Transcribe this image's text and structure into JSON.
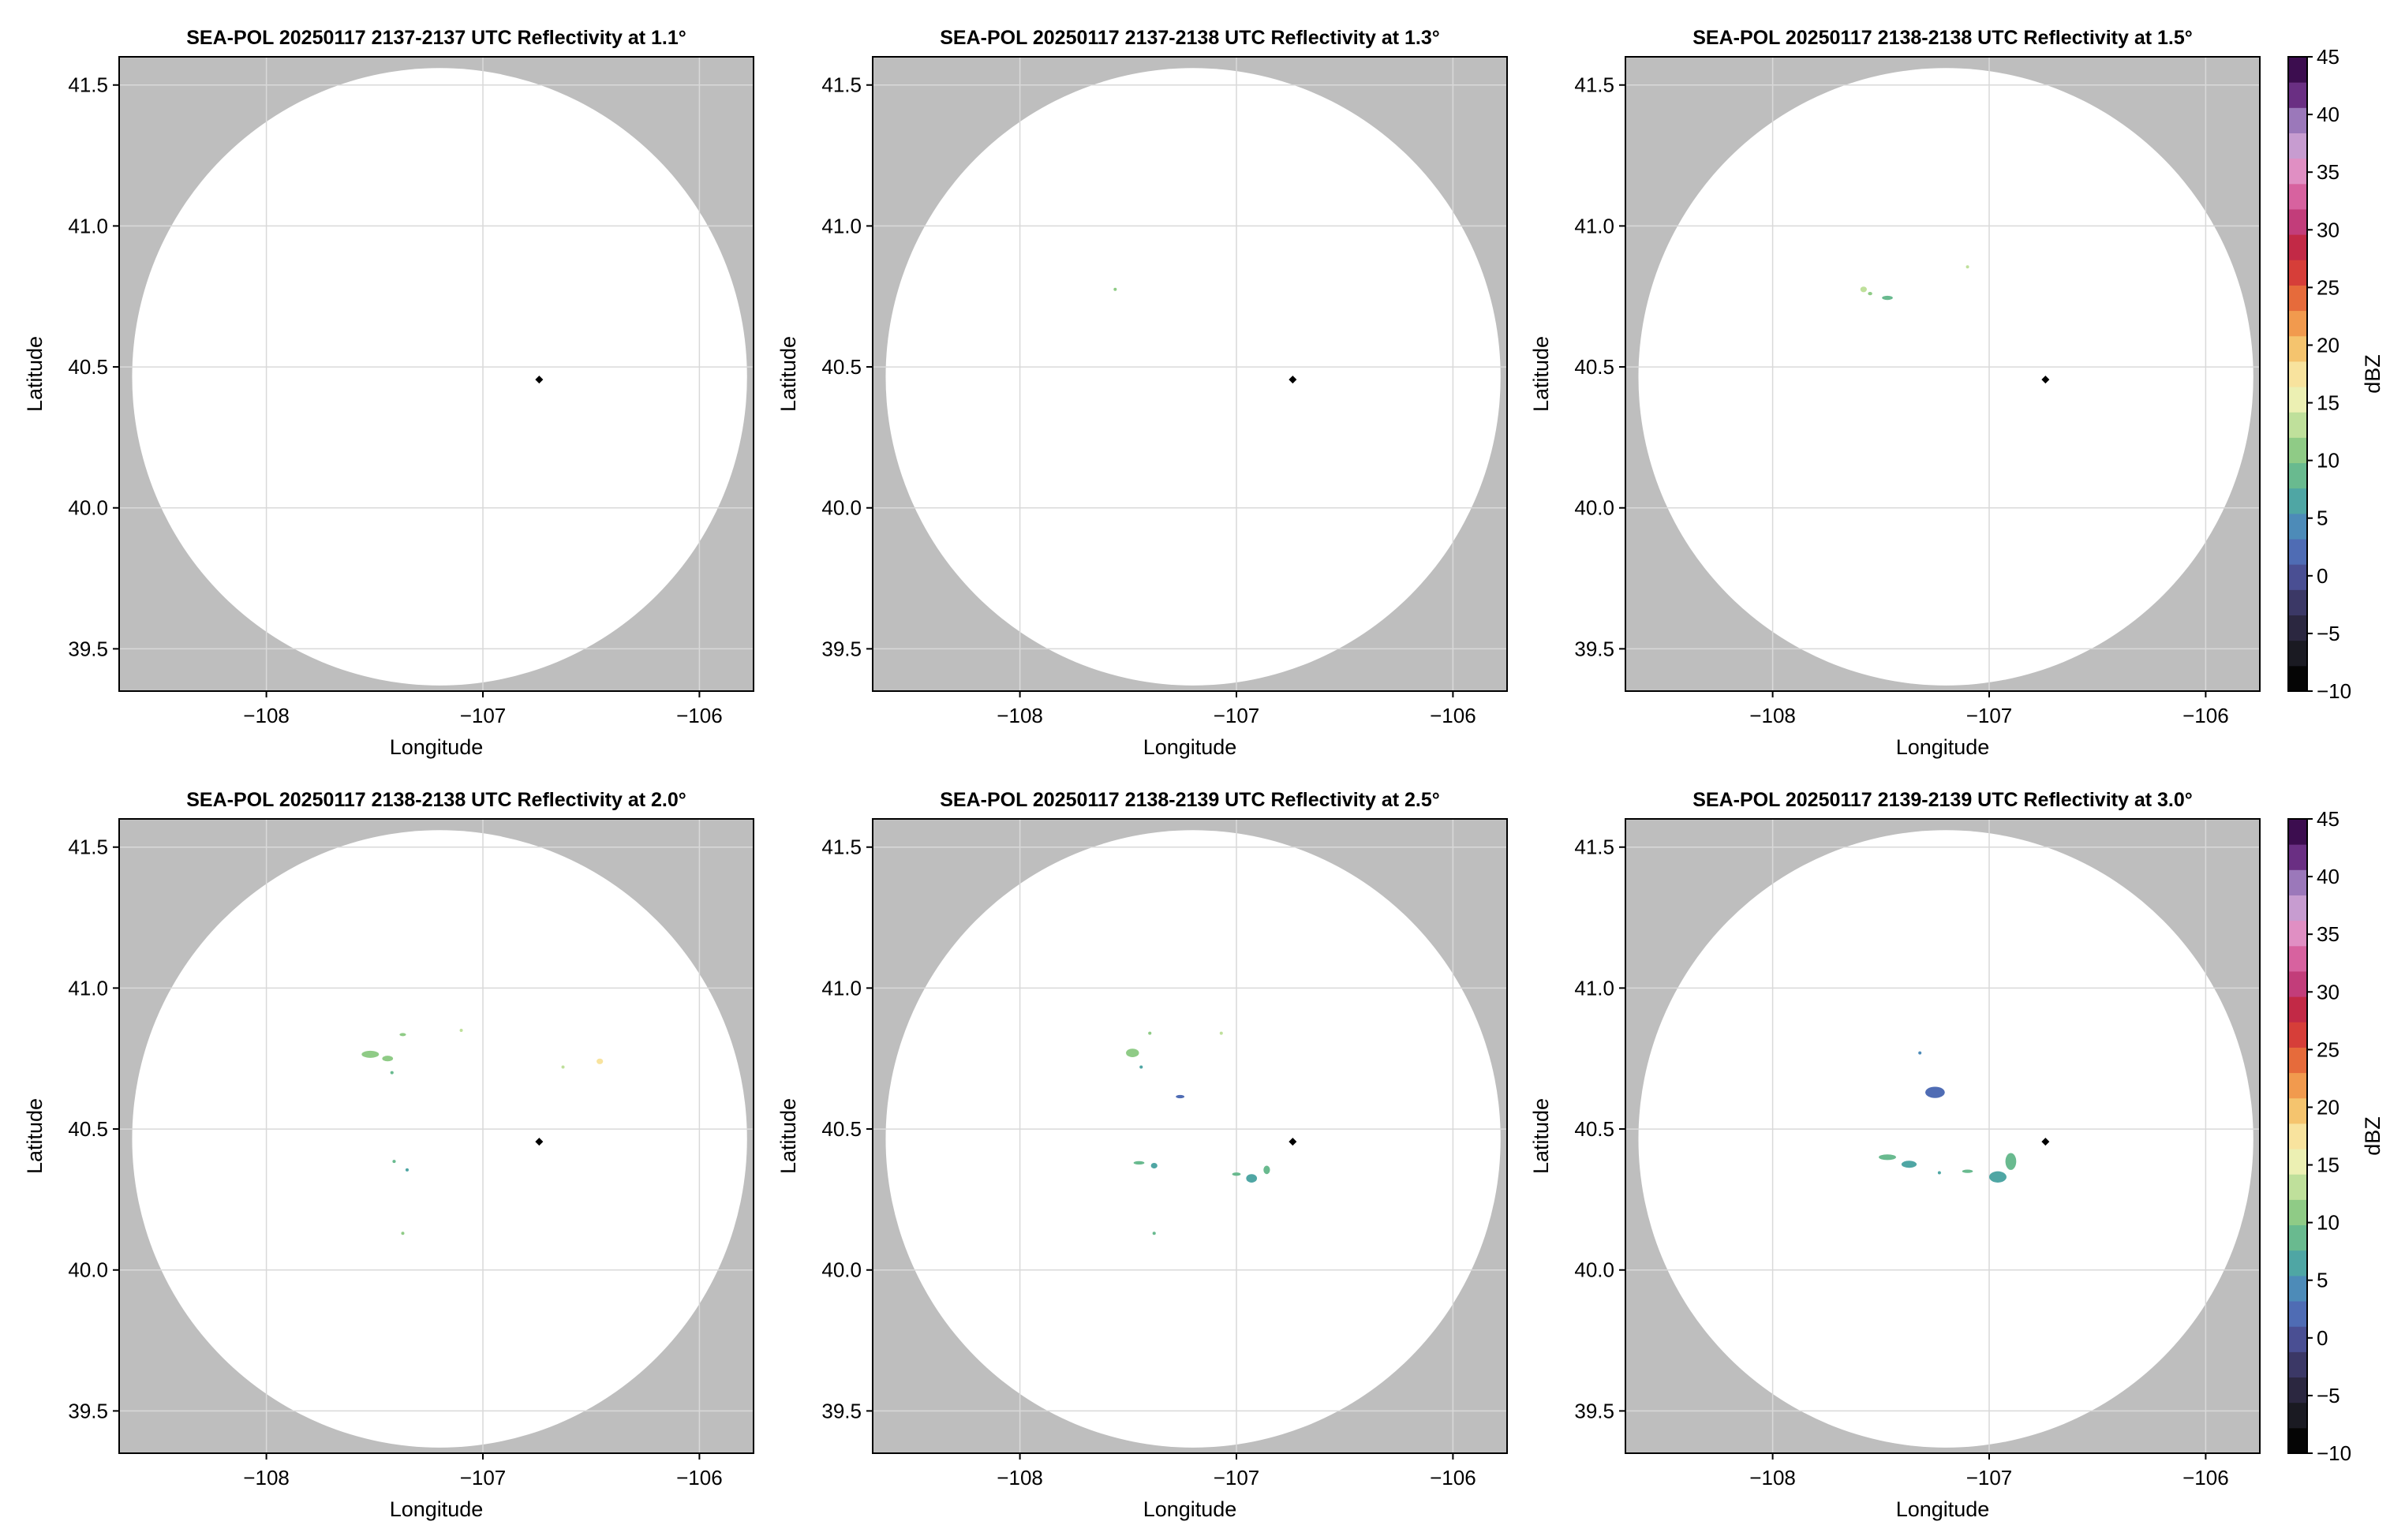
{
  "colors": {
    "outside_range": "#bebebe",
    "inside_range": "#ffffff",
    "radar_marker": "#000000",
    "grid": "#d9d9d9"
  },
  "colorbar": {
    "label": "dBZ",
    "min": -10,
    "max": 45,
    "step": 5,
    "ticks": [
      "−10",
      "−5",
      "0",
      "5",
      "10",
      "15",
      "20",
      "25",
      "30",
      "35",
      "40",
      "45"
    ],
    "palette": [
      "#050505",
      "#1a1a22",
      "#2b2740",
      "#3b3866",
      "#4a4f93",
      "#4f6cb4",
      "#4d8bb8",
      "#4fa6a4",
      "#69ba8f",
      "#8fcb86",
      "#bfe09b",
      "#ecf0b3",
      "#f8e39e",
      "#f5c46e",
      "#f19a4e",
      "#e66b3b",
      "#d63e39",
      "#c22946",
      "#c23d7a",
      "#d7629f",
      "#e08fc3",
      "#c79cd0",
      "#9b78ba",
      "#6a2f83",
      "#3c0d4f"
    ]
  },
  "chart_data": [
    {
      "type": "heatmap",
      "title": "SEA-POL 20250117 2137-2137 UTC Reflectivity at 1.1°",
      "xlabel": "Longitude",
      "ylabel": "Latitude",
      "xlim": [
        -108.68,
        -105.75
      ],
      "ylim": [
        39.35,
        41.6
      ],
      "xticks": [
        -108,
        -107,
        -106
      ],
      "xtick_labels": [
        "−108",
        "−107",
        "−106"
      ],
      "yticks": [
        39.5,
        40.0,
        40.5,
        41.0,
        41.5
      ],
      "ytick_labels": [
        "39.5",
        "40.0",
        "40.5",
        "41.0",
        "41.5"
      ],
      "grid": true,
      "radar_site": {
        "lon": -106.74,
        "lat": 40.455
      },
      "range_circle": {
        "center_lon": -107.2,
        "center_lat": 40.465,
        "radius_lon": 1.42,
        "radius_lat": 1.095
      },
      "echoes": []
    },
    {
      "type": "heatmap",
      "title": "SEA-POL 20250117 2137-2138 UTC Reflectivity at 1.3°",
      "xlabel": "Longitude",
      "ylabel": "Latitude",
      "xlim": [
        -108.68,
        -105.75
      ],
      "ylim": [
        39.35,
        41.6
      ],
      "xticks": [
        -108,
        -107,
        -106
      ],
      "xtick_labels": [
        "−108",
        "−107",
        "−106"
      ],
      "yticks": [
        39.5,
        40.0,
        40.5,
        41.0,
        41.5
      ],
      "ytick_labels": [
        "39.5",
        "40.0",
        "40.5",
        "41.0",
        "41.5"
      ],
      "grid": true,
      "radar_site": {
        "lon": -106.74,
        "lat": 40.455
      },
      "range_circle": {
        "center_lon": -107.2,
        "center_lat": 40.465,
        "radius_lon": 1.42,
        "radius_lat": 1.095
      },
      "echoes": [
        {
          "lon": -107.56,
          "lat": 40.775,
          "dlon": 0.01,
          "dlat": 0.008,
          "dbz": 10
        }
      ]
    },
    {
      "type": "heatmap",
      "title": "SEA-POL 20250117 2138-2138 UTC Reflectivity at 1.5°",
      "xlabel": "Longitude",
      "ylabel": "Latitude",
      "xlim": [
        -108.68,
        -105.75
      ],
      "ylim": [
        39.35,
        41.6
      ],
      "xticks": [
        -108,
        -107,
        -106
      ],
      "xtick_labels": [
        "−108",
        "−107",
        "−106"
      ],
      "yticks": [
        39.5,
        40.0,
        40.5,
        41.0,
        41.5
      ],
      "ytick_labels": [
        "39.5",
        "40.0",
        "40.5",
        "41.0",
        "41.5"
      ],
      "grid": true,
      "radar_site": {
        "lon": -106.74,
        "lat": 40.455
      },
      "range_circle": {
        "center_lon": -107.2,
        "center_lat": 40.465,
        "radius_lon": 1.42,
        "radius_lat": 1.095
      },
      "echoes": [
        {
          "lon": -107.58,
          "lat": 40.775,
          "dlon": 0.03,
          "dlat": 0.02,
          "dbz": 12
        },
        {
          "lon": -107.55,
          "lat": 40.76,
          "dlon": 0.02,
          "dlat": 0.012,
          "dbz": 10
        },
        {
          "lon": -107.47,
          "lat": 40.745,
          "dlon": 0.05,
          "dlat": 0.015,
          "dbz": 9
        },
        {
          "lon": -107.1,
          "lat": 40.855,
          "dlon": 0.01,
          "dlat": 0.008,
          "dbz": 14
        }
      ]
    },
    {
      "type": "heatmap",
      "title": "SEA-POL 20250117 2138-2138 UTC Reflectivity at 2.0°",
      "xlabel": "Longitude",
      "ylabel": "Latitude",
      "xlim": [
        -108.68,
        -105.75
      ],
      "ylim": [
        39.35,
        41.6
      ],
      "xticks": [
        -108,
        -107,
        -106
      ],
      "xtick_labels": [
        "−108",
        "−107",
        "−106"
      ],
      "yticks": [
        39.5,
        40.0,
        40.5,
        41.0,
        41.5
      ],
      "ytick_labels": [
        "39.5",
        "40.0",
        "40.5",
        "41.0",
        "41.5"
      ],
      "grid": true,
      "radar_site": {
        "lon": -106.74,
        "lat": 40.455
      },
      "range_circle": {
        "center_lon": -107.2,
        "center_lat": 40.465,
        "radius_lon": 1.42,
        "radius_lat": 1.095
      },
      "echoes": [
        {
          "lon": -107.52,
          "lat": 40.765,
          "dlon": 0.08,
          "dlat": 0.025,
          "dbz": 11
        },
        {
          "lon": -107.44,
          "lat": 40.75,
          "dlon": 0.05,
          "dlat": 0.02,
          "dbz": 10
        },
        {
          "lon": -107.37,
          "lat": 40.835,
          "dlon": 0.03,
          "dlat": 0.008,
          "dbz": 10
        },
        {
          "lon": -107.1,
          "lat": 40.85,
          "dlon": 0.01,
          "dlat": 0.008,
          "dbz": 12
        },
        {
          "lon": -106.46,
          "lat": 40.74,
          "dlon": 0.03,
          "dlat": 0.02,
          "dbz": 17
        },
        {
          "lon": -106.63,
          "lat": 40.72,
          "dlon": 0.01,
          "dlat": 0.006,
          "dbz": 14
        },
        {
          "lon": -107.42,
          "lat": 40.7,
          "dlon": 0.015,
          "dlat": 0.01,
          "dbz": 8
        },
        {
          "lon": -107.41,
          "lat": 40.385,
          "dlon": 0.015,
          "dlat": 0.008,
          "dbz": 9
        },
        {
          "lon": -107.35,
          "lat": 40.355,
          "dlon": 0.015,
          "dlat": 0.008,
          "dbz": 6
        },
        {
          "lon": -107.37,
          "lat": 40.13,
          "dlon": 0.01,
          "dlat": 0.008,
          "dbz": 11
        }
      ]
    },
    {
      "type": "heatmap",
      "title": "SEA-POL 20250117 2138-2139 UTC Reflectivity at 2.5°",
      "xlabel": "Longitude",
      "ylabel": "Latitude",
      "xlim": [
        -108.68,
        -105.75
      ],
      "ylim": [
        39.35,
        41.6
      ],
      "xticks": [
        -108,
        -107,
        -106
      ],
      "xtick_labels": [
        "−108",
        "−107",
        "−106"
      ],
      "yticks": [
        39.5,
        40.0,
        40.5,
        41.0,
        41.5
      ],
      "ytick_labels": [
        "39.5",
        "40.0",
        "40.5",
        "41.0",
        "41.5"
      ],
      "grid": true,
      "radar_site": {
        "lon": -106.74,
        "lat": 40.455
      },
      "range_circle": {
        "center_lon": -107.2,
        "center_lat": 40.465,
        "radius_lon": 1.42,
        "radius_lat": 1.095
      },
      "echoes": [
        {
          "lon": -107.48,
          "lat": 40.77,
          "dlon": 0.06,
          "dlat": 0.03,
          "dbz": 10
        },
        {
          "lon": -107.4,
          "lat": 40.84,
          "dlon": 0.015,
          "dlat": 0.008,
          "dbz": 10
        },
        {
          "lon": -107.07,
          "lat": 40.84,
          "dlon": 0.01,
          "dlat": 0.006,
          "dbz": 12
        },
        {
          "lon": -107.26,
          "lat": 40.615,
          "dlon": 0.04,
          "dlat": 0.012,
          "dbz": 2
        },
        {
          "lon": -107.44,
          "lat": 40.72,
          "dlon": 0.015,
          "dlat": 0.01,
          "dbz": 7
        },
        {
          "lon": -107.45,
          "lat": 40.38,
          "dlon": 0.05,
          "dlat": 0.012,
          "dbz": 8
        },
        {
          "lon": -107.38,
          "lat": 40.37,
          "dlon": 0.03,
          "dlat": 0.02,
          "dbz": 7
        },
        {
          "lon": -107.0,
          "lat": 40.34,
          "dlon": 0.04,
          "dlat": 0.012,
          "dbz": 8
        },
        {
          "lon": -106.93,
          "lat": 40.325,
          "dlon": 0.05,
          "dlat": 0.03,
          "dbz": 7
        },
        {
          "lon": -106.86,
          "lat": 40.355,
          "dlon": 0.03,
          "dlat": 0.03,
          "dbz": 9
        },
        {
          "lon": -107.38,
          "lat": 40.13,
          "dlon": 0.015,
          "dlat": 0.008,
          "dbz": 9
        }
      ]
    },
    {
      "type": "heatmap",
      "title": "SEA-POL 20250117 2139-2139 UTC Reflectivity at 3.0°",
      "xlabel": "Longitude",
      "ylabel": "Latitude",
      "xlim": [
        -108.68,
        -105.75
      ],
      "ylim": [
        39.35,
        41.6
      ],
      "xticks": [
        -108,
        -107,
        -106
      ],
      "xtick_labels": [
        "−108",
        "−107",
        "−106"
      ],
      "yticks": [
        39.5,
        40.0,
        40.5,
        41.0,
        41.5
      ],
      "ytick_labels": [
        "39.5",
        "40.0",
        "40.5",
        "41.0",
        "41.5"
      ],
      "grid": true,
      "radar_site": {
        "lon": -106.74,
        "lat": 40.455
      },
      "range_circle": {
        "center_lon": -107.2,
        "center_lat": 40.465,
        "radius_lon": 1.42,
        "radius_lat": 1.095
      },
      "echoes": [
        {
          "lon": -107.25,
          "lat": 40.63,
          "dlon": 0.09,
          "dlat": 0.04,
          "dbz": 1
        },
        {
          "lon": -107.32,
          "lat": 40.77,
          "dlon": 0.01,
          "dlat": 0.008,
          "dbz": 4
        },
        {
          "lon": -107.47,
          "lat": 40.4,
          "dlon": 0.08,
          "dlat": 0.02,
          "dbz": 8
        },
        {
          "lon": -107.37,
          "lat": 40.375,
          "dlon": 0.07,
          "dlat": 0.025,
          "dbz": 7
        },
        {
          "lon": -107.1,
          "lat": 40.35,
          "dlon": 0.05,
          "dlat": 0.012,
          "dbz": 8
        },
        {
          "lon": -106.96,
          "lat": 40.33,
          "dlon": 0.08,
          "dlat": 0.04,
          "dbz": 7
        },
        {
          "lon": -106.9,
          "lat": 40.385,
          "dlon": 0.05,
          "dlat": 0.06,
          "dbz": 8
        },
        {
          "lon": -107.23,
          "lat": 40.345,
          "dlon": 0.01,
          "dlat": 0.008,
          "dbz": 6
        }
      ]
    }
  ]
}
